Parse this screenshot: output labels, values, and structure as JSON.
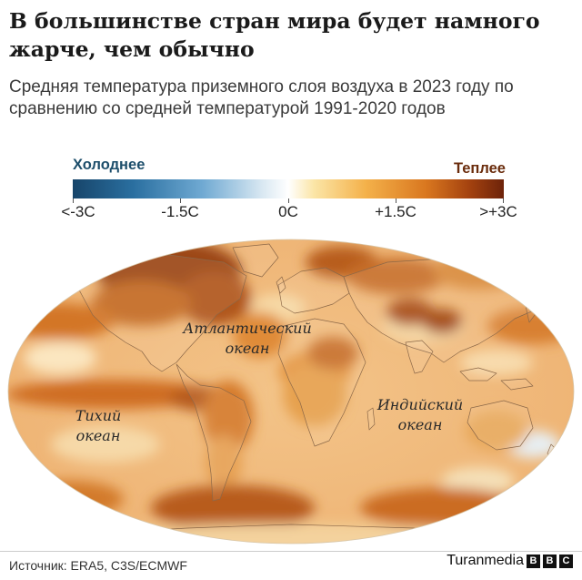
{
  "title": "В большинстве стран мира будет намного жарче, чем обычно",
  "subtitle": "Средняя температура приземного слоя воздуха в 2023 году по сравнению со средней температурой 1991-2020 годов",
  "legend": {
    "cold_label": "Холоднее",
    "warm_label": "Теплее",
    "ticks": [
      "<-3C",
      "-1.5C",
      "0C",
      "+1.5C",
      ">+3C"
    ],
    "colors": {
      "cold": "#17456a",
      "neutral": "#ffffff",
      "warm": "#6d230a"
    }
  },
  "map": {
    "ocean_labels": {
      "atlantic_1": "Атлантический",
      "atlantic_2": "океан",
      "pacific_1": "Тихий",
      "pacific_2": "океан",
      "indian_1": "Индийский",
      "indian_2": "океан"
    }
  },
  "footer": {
    "source": "Источник: ERA5, C3S/ECMWF",
    "watermark": "Turanmedia",
    "bbc": [
      "B",
      "B",
      "C"
    ]
  }
}
